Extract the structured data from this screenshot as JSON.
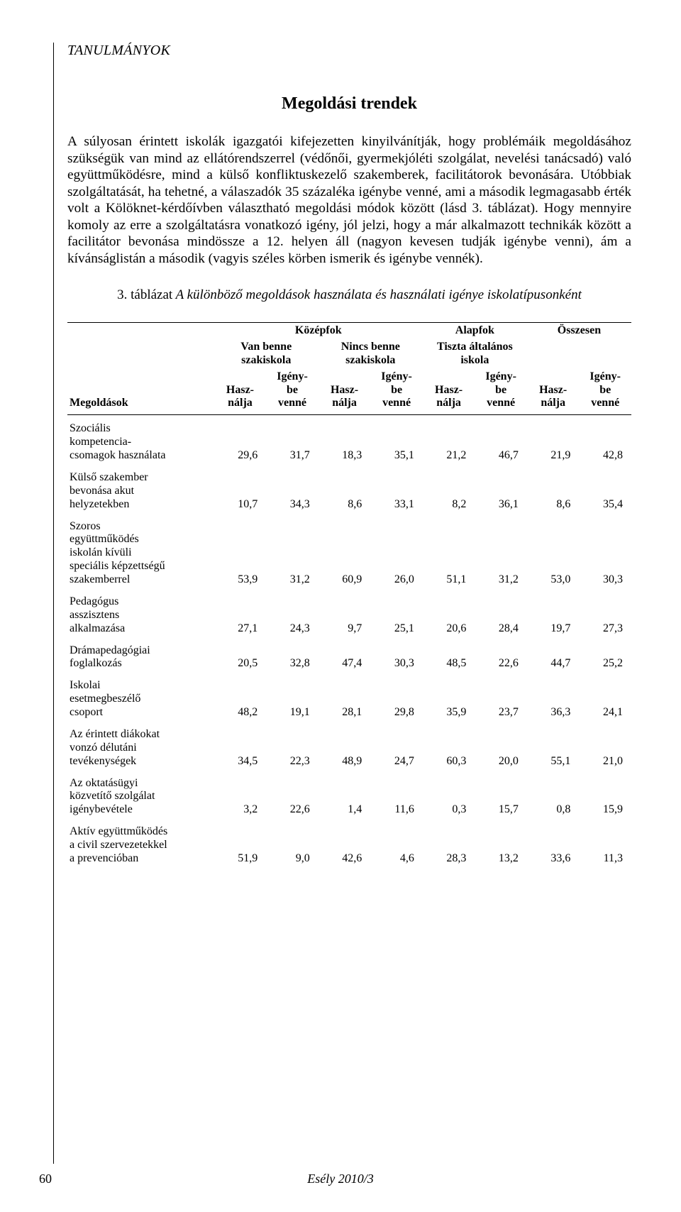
{
  "colors": {
    "text": "#000000",
    "background": "#ffffff",
    "rule": "#000000"
  },
  "fonts": {
    "body_family": "Palatino-like serif",
    "body_size_pt": 11,
    "title_size_pt": 14
  },
  "header": {
    "running_head": "TANULMÁNYOK"
  },
  "section": {
    "title": "Megoldási trendek"
  },
  "paragraph": {
    "text": "A súlyosan érintett iskolák igazgatói kifejezetten kinyilvánítják, hogy problémáik megoldásához szükségük van mind az ellátórendszerrel (védőnői, gyermekjóléti szolgálat, nevelési tanácsadó) való együttműködésre, mind a külső konfliktuskezelő szakemberek, facilitátorok bevonására. Utóbbiak szolgáltatását, ha tehetné, a válaszadók 35 százaléka igénybe venné, ami a második legmagasabb érték volt a Kölöknet-kérdőívben választható megoldási módok között (lásd 3. táblázat). Hogy mennyire komoly az erre a szolgáltatásra vonatkozó igény, jól jelzi, hogy a már alkalmazott technikák között a facilitátor bevonása mindössze a 12. helyen áll (nagyon kevesen tudják igénybe venni), ám a kívánságlistán a második (vagyis széles körben ismerik és igénybe vennék)."
  },
  "table": {
    "caption_lead": "3. táblázat",
    "caption_rest": " A különböző megoldások használata és használati igénye iskolatípusonként",
    "super_headers": {
      "group1": "Középfok",
      "group2": "Alapfok",
      "group3": "Összesen"
    },
    "mid_headers": {
      "col1": "Van benne szakiskola",
      "col2": "Nincs benne szakiskola",
      "col3": "Tiszta általános iskola"
    },
    "sub_header_use": "Használja",
    "sub_header_want": "Igénybe venné",
    "row_label_header": "Megoldások",
    "rows": [
      {
        "label": "Szociális kompetencia-csomagok használata",
        "values": [
          "29,6",
          "31,7",
          "18,3",
          "35,1",
          "21,2",
          "46,7",
          "21,9",
          "42,8"
        ]
      },
      {
        "label": "Külső szakember bevonása akut helyzetekben",
        "values": [
          "10,7",
          "34,3",
          "8,6",
          "33,1",
          "8,2",
          "36,1",
          "8,6",
          "35,4"
        ]
      },
      {
        "label": "Szoros együttműködés iskolán kívüli speciális képzettségű szakemberrel",
        "values": [
          "53,9",
          "31,2",
          "60,9",
          "26,0",
          "51,1",
          "31,2",
          "53,0",
          "30,3"
        ]
      },
      {
        "label": "Pedagógus asszisztens alkalmazása",
        "values": [
          "27,1",
          "24,3",
          "9,7",
          "25,1",
          "20,6",
          "28,4",
          "19,7",
          "27,3"
        ]
      },
      {
        "label": "Drámapedagógiai foglalkozás",
        "values": [
          "20,5",
          "32,8",
          "47,4",
          "30,3",
          "48,5",
          "22,6",
          "44,7",
          "25,2"
        ]
      },
      {
        "label": "Iskolai esetmegbeszélő csoport",
        "values": [
          "48,2",
          "19,1",
          "28,1",
          "29,8",
          "35,9",
          "23,7",
          "36,3",
          "24,1"
        ]
      },
      {
        "label": "Az érintett diákokat vonzó délutáni tevékenységek",
        "values": [
          "34,5",
          "22,3",
          "48,9",
          "24,7",
          "60,3",
          "20,0",
          "55,1",
          "21,0"
        ]
      },
      {
        "label": "Az oktatásügyi közvetítő szolgálat igénybevétele",
        "values": [
          "3,2",
          "22,6",
          "1,4",
          "11,6",
          "0,3",
          "15,7",
          "0,8",
          "15,9"
        ]
      },
      {
        "label": "Aktív együttműködés a civil szervezetekkel a prevencióban",
        "values": [
          "51,9",
          "9,0",
          "42,6",
          "4,6",
          "28,3",
          "13,2",
          "33,6",
          "11,3"
        ]
      }
    ],
    "column_widths_pct": [
      26,
      9.25,
      9.25,
      9.25,
      9.25,
      9.25,
      9.25,
      9.25,
      9.25
    ],
    "cell_align": {
      "label": "left",
      "numeric": "right"
    }
  },
  "footer": {
    "page_number": "60",
    "journal": "Esély 2010/3"
  }
}
